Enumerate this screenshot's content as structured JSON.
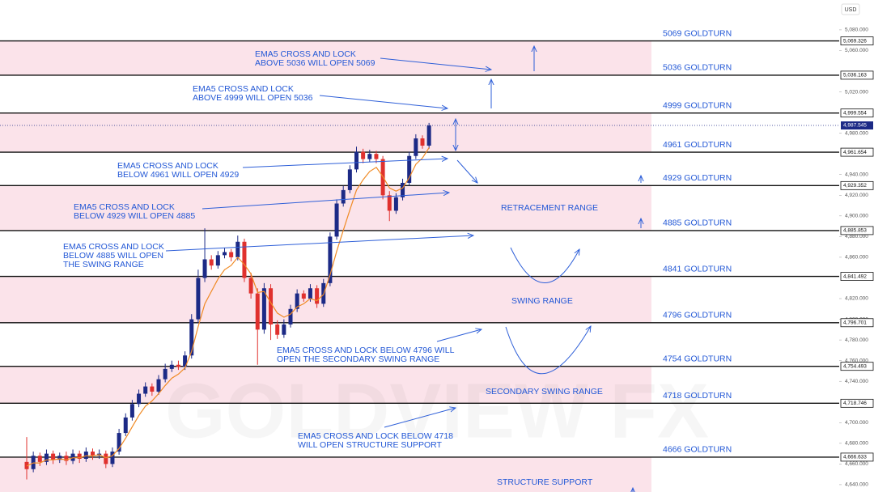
{
  "chart_data": {
    "type": "candlestick",
    "currency": "USD",
    "watermark": "GOLDVIEW FX",
    "ylim": [
      4632.9,
      5108.9
    ],
    "yticks": [
      {
        "value": 5080,
        "label": "5,080.000"
      },
      {
        "value": 5060,
        "label": "5,060.000"
      },
      {
        "value": 5020,
        "label": "5,020.000"
      },
      {
        "value": 4980,
        "label": "4,980.000"
      },
      {
        "value": 4940,
        "label": "4,940.000"
      },
      {
        "value": 4920,
        "label": "4,920.000"
      },
      {
        "value": 4900,
        "label": "4,900.000"
      },
      {
        "value": 4880,
        "label": "4,880.000"
      },
      {
        "value": 4860,
        "label": "4,860.000"
      },
      {
        "value": 4820,
        "label": "4,820.000"
      },
      {
        "value": 4800,
        "label": "4,800.000"
      },
      {
        "value": 4780,
        "label": "4,780.000"
      },
      {
        "value": 4760,
        "label": "4,760.000"
      },
      {
        "value": 4740,
        "label": "4,740.000"
      },
      {
        "value": 4700,
        "label": "4,700.000"
      },
      {
        "value": 4680,
        "label": "4,680.000"
      },
      {
        "value": 4660,
        "label": "4,660.000"
      },
      {
        "value": 4640,
        "label": "4,640.000"
      }
    ],
    "up_color": "#1c2a86",
    "down_color": "#e0312e",
    "ema_color": "#f08a24",
    "band_color": "#fbe3ea",
    "text_color": "#2358d6",
    "candles": {
      "open": [
        4662,
        4655,
        4668,
        4662,
        4670,
        4664,
        4668,
        4663,
        4670,
        4665,
        4672,
        4668,
        4670,
        4660,
        4672,
        4690,
        4705,
        4718,
        4728,
        4735,
        4730,
        4742,
        4752,
        4756,
        4754,
        4765,
        4800,
        4840,
        4858,
        4852,
        4862,
        4865,
        4860,
        4875,
        4840,
        4825,
        4790,
        4830,
        4795,
        4785,
        4795,
        4810,
        4825,
        4820,
        4830,
        4815,
        4835,
        4880,
        4912,
        4925,
        4945,
        4962,
        4955,
        4960,
        4955,
        4920,
        4905,
        4918,
        4932,
        4958,
        4975,
        4968
      ],
      "high": [
        4686,
        4672,
        4671,
        4674,
        4673,
        4671,
        4672,
        4674,
        4673,
        4676,
        4675,
        4674,
        4673,
        4676,
        4694,
        4709,
        4722,
        4732,
        4739,
        4738,
        4746,
        4757,
        4760,
        4760,
        4769,
        4805,
        4848,
        4888,
        4862,
        4866,
        4869,
        4868,
        4881,
        4878,
        4845,
        4830,
        4835,
        4834,
        4799,
        4800,
        4814,
        4829,
        4828,
        4834,
        4833,
        4839,
        4884,
        4916,
        4929,
        4949,
        4967,
        4965,
        4964,
        4963,
        4958,
        4924,
        4922,
        4936,
        4962,
        4979,
        4978,
        4990
      ],
      "low": [
        4645,
        4652,
        4658,
        4659,
        4660,
        4661,
        4659,
        4660,
        4661,
        4662,
        4664,
        4665,
        4656,
        4657,
        4669,
        4687,
        4702,
        4715,
        4725,
        4726,
        4727,
        4739,
        4749,
        4751,
        4751,
        4762,
        4796,
        4836,
        4848,
        4849,
        4859,
        4856,
        4857,
        4836,
        4820,
        4756,
        4786,
        4780,
        4781,
        4782,
        4792,
        4807,
        4817,
        4817,
        4811,
        4812,
        4832,
        4877,
        4909,
        4922,
        4942,
        4951,
        4952,
        4951,
        4916,
        4895,
        4902,
        4915,
        4929,
        4955,
        4965,
        4965
      ],
      "close": [
        4655,
        4668,
        4662,
        4670,
        4664,
        4668,
        4663,
        4670,
        4665,
        4672,
        4668,
        4670,
        4660,
        4672,
        4690,
        4705,
        4718,
        4728,
        4735,
        4730,
        4742,
        4752,
        4756,
        4754,
        4765,
        4800,
        4840,
        4858,
        4852,
        4862,
        4865,
        4860,
        4875,
        4840,
        4825,
        4790,
        4830,
        4795,
        4785,
        4795,
        4810,
        4825,
        4820,
        4830,
        4815,
        4835,
        4880,
        4912,
        4925,
        4945,
        4962,
        4955,
        4960,
        4955,
        4920,
        4905,
        4918,
        4932,
        4958,
        4975,
        4968,
        4987.5
      ]
    },
    "ema": [
      4658,
      4661,
      4661,
      4664,
      4664,
      4665,
      4664,
      4666,
      4666,
      4668,
      4668,
      4669,
      4666,
      4668,
      4675,
      4685,
      4696,
      4707,
      4716,
      4721,
      4728,
      4736,
      4743,
      4747,
      4753,
      4769,
      4793,
      4815,
      4827,
      4839,
      4848,
      4852,
      4860,
      4853,
      4844,
      4826,
      4827,
      4816,
      4806,
      4802,
      4805,
      4812,
      4815,
      4820,
      4818,
      4824,
      4843,
      4866,
      4886,
      4906,
      4925,
      4935,
      4943,
      4947,
      4938,
      4927,
      4924,
      4927,
      4937,
      4950,
      4956,
      4966
    ],
    "current_price": {
      "value": 4987.545,
      "label": "4,987.545"
    },
    "levels": [
      {
        "price": {
          "value": 5069.326,
          "label": "5,069.326"
        },
        "name": "5069 GOLDTURN"
      },
      {
        "price": {
          "value": 5036.163,
          "label": "5,036.163"
        },
        "name": "5036 GOLDTURN"
      },
      {
        "price": {
          "value": 4999.554,
          "label": "4,999.554"
        },
        "name": "4999 GOLDTURN"
      },
      {
        "price": {
          "value": 4961.654,
          "label": "4,961.654"
        },
        "name": "4961 GOLDTURN"
      },
      {
        "price": {
          "value": 4929.352,
          "label": "4,929.352"
        },
        "name": "4929 GOLDTURN"
      },
      {
        "price": {
          "value": 4885.853,
          "label": "4,885.853"
        },
        "name": "4885 GOLDTURN"
      },
      {
        "price": {
          "value": 4841.492,
          "label": "4,841.492"
        },
        "name": "4841 GOLDTURN"
      },
      {
        "price": {
          "value": 4796.701,
          "label": "4,796.701"
        },
        "name": "4796 GOLDTURN"
      },
      {
        "price": {
          "value": 4754.493,
          "label": "4,754.493"
        },
        "name": "4754  GOLDTURN"
      },
      {
        "price": {
          "value": 4718.746,
          "label": "4,718.746"
        },
        "name": "4718 GOLDTURN"
      },
      {
        "price": {
          "value": 4666.633,
          "label": "4,666.633"
        },
        "name": "4666 GOLDTURN"
      }
    ],
    "annotations": [
      [
        "EMA5 CROSS AND LOCK",
        "ABOVE 5036 WILL OPEN 5069"
      ],
      [
        "EMA5 CROSS AND LOCK",
        "ABOVE 4999 WILL OPEN 5036"
      ],
      [
        "EMA5 CROSS AND LOCK",
        "BELOW 4961 WILL OPEN 4929"
      ],
      [
        "EMA5 CROSS AND LOCK",
        "BELOW 4929 WILL OPEN 4885"
      ],
      [
        "EMA5 CROSS AND LOCK",
        "BELOW 4885 WILL OPEN",
        "THE SWING RANGE"
      ],
      [
        "EMA5 CROSS AND LOCK BELOW 4796 WILL",
        "OPEN THE SECONDARY SWING RANGE"
      ],
      [
        "EMA5 CROSS AND LOCK BELOW 4718",
        "WILL OPEN STRUCTURE SUPPORT"
      ]
    ],
    "zones": [
      "RETRACEMENT RANGE",
      "SWING RANGE",
      "SECONDARY SWING RANGE",
      "STRUCTURE SUPPORT"
    ]
  }
}
